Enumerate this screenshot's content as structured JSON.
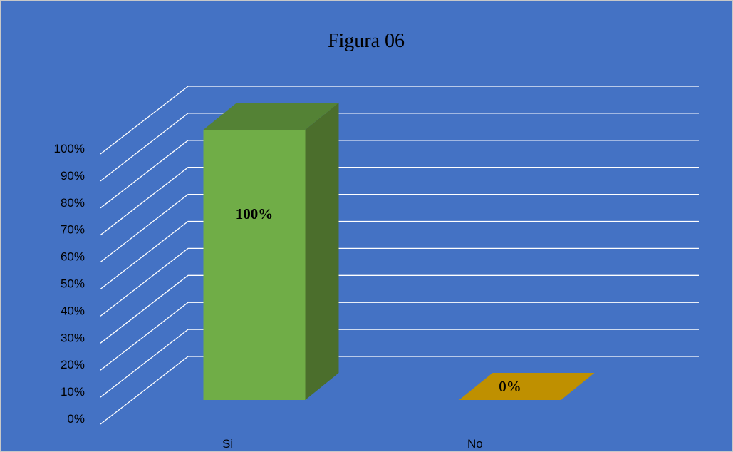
{
  "chart_data": {
    "type": "bar",
    "title": "Figura 06",
    "categories": [
      "Si",
      "No"
    ],
    "values": [
      100,
      0
    ],
    "data_labels": [
      "100%",
      "0%"
    ],
    "xlabel": "",
    "ylabel": "",
    "ylim": [
      0,
      100
    ],
    "y_ticks": [
      "0%",
      "10%",
      "20%",
      "30%",
      "40%",
      "50%",
      "60%",
      "70%",
      "80%",
      "90%",
      "100%"
    ],
    "grid": true,
    "legend": "none",
    "three_d": true
  },
  "colors": {
    "background": "#4472c4",
    "gridline": "#ffffff",
    "bars": [
      {
        "front": "#70ad47",
        "top": "#548235",
        "side": "#4b6e2c"
      },
      {
        "front": "#bf9000",
        "top": "#bf9000",
        "side": "#9c7600"
      }
    ]
  }
}
